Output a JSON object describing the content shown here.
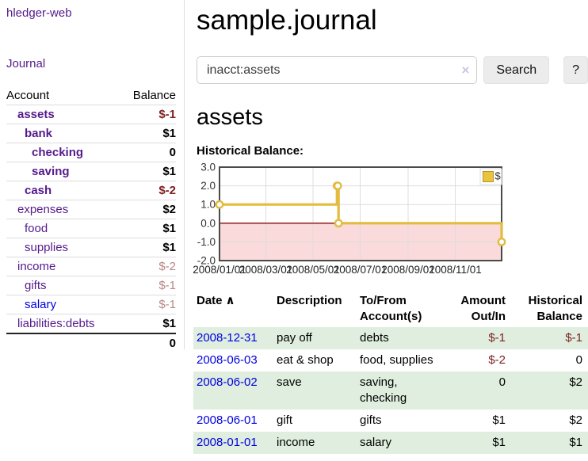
{
  "sidebar": {
    "brand": "hledger-web",
    "nav": {
      "journal": "Journal"
    },
    "accounts_table": {
      "headers": {
        "account": "Account",
        "balance": "Balance"
      },
      "rows": [
        {
          "label": "assets",
          "depth": 1,
          "bold": true,
          "balance": "$-1",
          "balance_class": "neg"
        },
        {
          "label": "bank",
          "depth": 2,
          "bold": true,
          "balance": "$1",
          "balance_class": ""
        },
        {
          "label": "checking",
          "depth": 3,
          "bold": true,
          "balance": "0",
          "balance_class": ""
        },
        {
          "label": "saving",
          "depth": 3,
          "bold": true,
          "balance": "$1",
          "balance_class": ""
        },
        {
          "label": "cash",
          "depth": 2,
          "bold": true,
          "balance": "$-2",
          "balance_class": "neg"
        },
        {
          "label": "expenses",
          "depth": 1,
          "bold": false,
          "balance": "$2",
          "balance_class": ""
        },
        {
          "label": "food",
          "depth": 2,
          "bold": false,
          "balance": "$1",
          "balance_class": ""
        },
        {
          "label": "supplies",
          "depth": 2,
          "bold": false,
          "balance": "$1",
          "balance_class": ""
        },
        {
          "label": "income",
          "depth": 1,
          "bold": false,
          "balance": "$-2",
          "balance_class": "neg-muted"
        },
        {
          "label": "gifts",
          "depth": 2,
          "bold": false,
          "balance": "$-1",
          "balance_class": "neg-muted"
        },
        {
          "label": "salary",
          "depth": 2,
          "bold": false,
          "blue": true,
          "balance": "$-1",
          "balance_class": "neg-muted"
        },
        {
          "label": "liabilities:debts",
          "depth": 1,
          "bold": false,
          "balance": "$1",
          "balance_class": ""
        }
      ],
      "total": "0"
    }
  },
  "main": {
    "title": "sample.journal",
    "search": {
      "value": "inacct:assets",
      "clear_icon": "×",
      "button_label": "Search",
      "help_label": "?"
    },
    "account_heading": "assets",
    "chart_label": "Historical Balance:",
    "register_table": {
      "headers": {
        "date": "Date",
        "sort_icon": "∧",
        "description": "Description",
        "accounts": "To/From\nAccount(s)",
        "amount": "Amount\nOut/In",
        "balance": "Historical\nBalance"
      },
      "rows": [
        {
          "date": "2008-12-31",
          "description": "pay off",
          "accounts": "debts",
          "amount": "$-1",
          "amount_class": "neg",
          "balance": "$-1",
          "balance_class": "neg",
          "shaded": true
        },
        {
          "date": "2008-06-03",
          "description": "eat & shop",
          "accounts": "food, supplies",
          "amount": "$-2",
          "amount_class": "neg",
          "balance": "0",
          "balance_class": "",
          "shaded": false
        },
        {
          "date": "2008-06-02",
          "description": "save",
          "accounts": "saving,\nchecking",
          "amount": "0",
          "amount_class": "",
          "balance": "$2",
          "balance_class": "",
          "shaded": true
        },
        {
          "date": "2008-06-01",
          "description": "gift",
          "accounts": "gifts",
          "amount": "$1",
          "amount_class": "",
          "balance": "$2",
          "balance_class": "",
          "shaded": false
        },
        {
          "date": "2008-01-01",
          "description": "income",
          "accounts": "salary",
          "amount": "$1",
          "amount_class": "",
          "balance": "$1",
          "balance_class": "",
          "shaded": true
        }
      ]
    }
  },
  "chart_data": {
    "type": "line",
    "title": "Historical Balance:",
    "series": [
      {
        "name": "$",
        "step": "after",
        "points": [
          [
            "2008-01-01",
            1
          ],
          [
            "2008-06-01",
            2
          ],
          [
            "2008-06-02",
            2
          ],
          [
            "2008-06-03",
            0
          ],
          [
            "2008-12-31",
            -1
          ]
        ]
      }
    ],
    "x_range": [
      "2008-01-01",
      "2008-12-31"
    ],
    "ylim": [
      -2,
      3
    ],
    "x_ticks": [
      "2008/01/01",
      "2008/03/01",
      "2008/05/01",
      "2008/07/01",
      "2008/09/01",
      "2008/11/01"
    ],
    "y_ticks": [
      "3.0",
      "2.0",
      "1.0",
      "0.0",
      "-1.0",
      "-2.0"
    ],
    "grid": true,
    "legend_position": "top-right",
    "colors": {
      "line": "#e2bc3f",
      "marker_fill": "#ffffff",
      "negative_fill": "#fadada",
      "zero_line": "#8f1c1c",
      "legend_fill": "#e9c53e",
      "legend_border": "#b99425",
      "grid": "#dddddd",
      "border": "#4a4a4a"
    }
  }
}
